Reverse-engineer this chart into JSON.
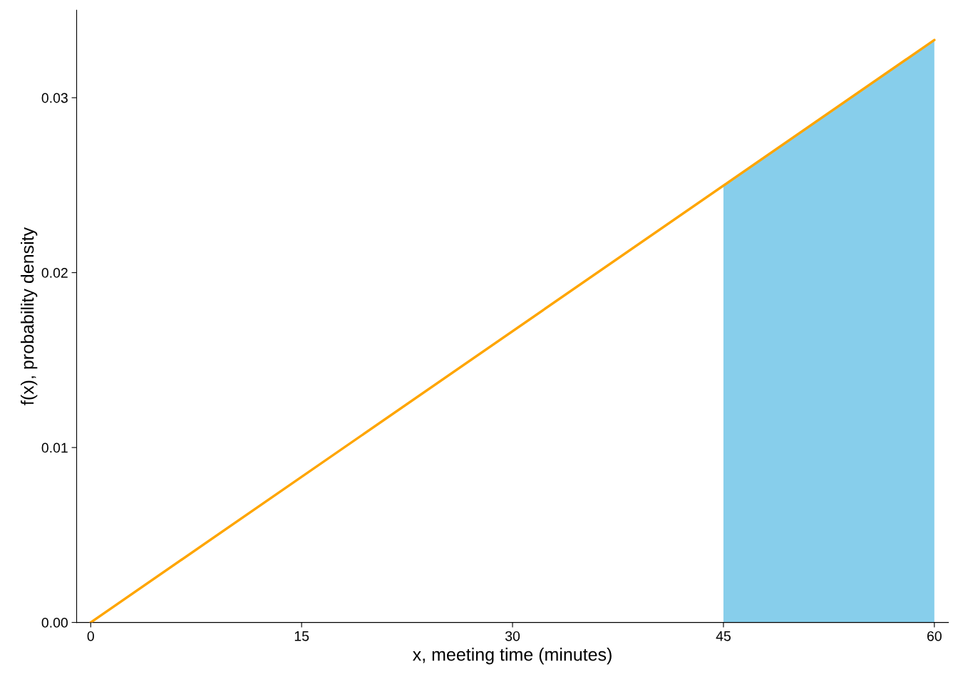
{
  "chart_data": {
    "type": "line",
    "xlabel": "x, meeting time (minutes)",
    "ylabel": "f(x), probability density",
    "series": [
      {
        "type": "area",
        "color": "#87ceeb",
        "x": [
          45,
          60
        ],
        "values": [
          0.025,
          0.0333
        ]
      },
      {
        "color": "#ffa500",
        "x": [
          0,
          60
        ],
        "values": [
          0,
          0.0333
        ]
      }
    ],
    "xlim": [
      -1,
      61
    ],
    "xticks": [
      0,
      15,
      30,
      45,
      60
    ],
    "ylim": [
      0,
      0.035
    ],
    "yticks": [
      {
        "value": 0,
        "label": "0.00"
      },
      {
        "value": 0.01,
        "label": "0.01"
      },
      {
        "value": 0.02,
        "label": "0.02"
      },
      {
        "value": 0.03,
        "label": "0.03"
      }
    ],
    "grid": false,
    "legend": false
  }
}
